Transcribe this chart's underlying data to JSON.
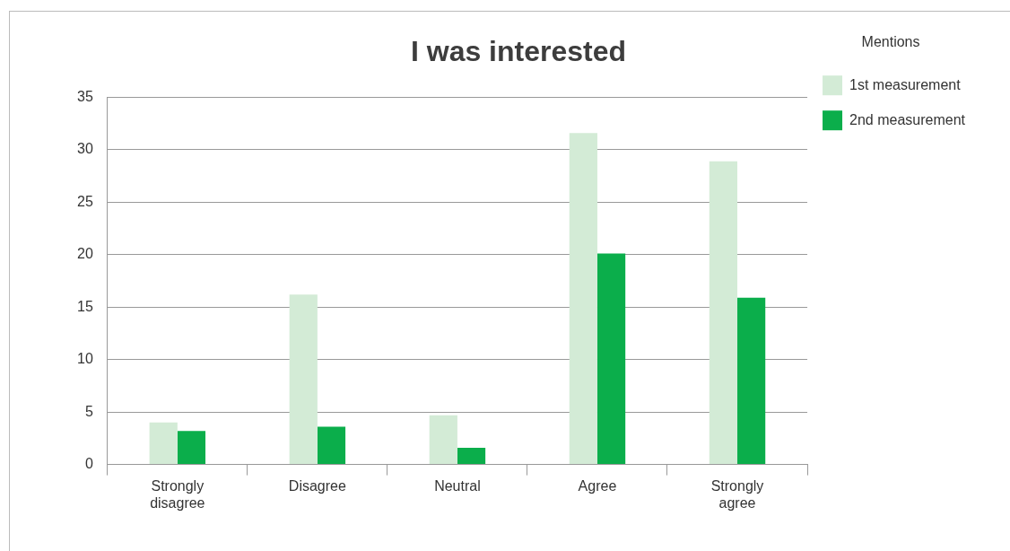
{
  "chart_data": {
    "type": "bar",
    "title": "I was interested",
    "legend_title": "Mentions",
    "categories": [
      "Strongly disagree",
      "Disagree",
      "Neutral",
      "Agree",
      "Strongly agree"
    ],
    "series": [
      {
        "name": "1st measurement",
        "color": "#d3ebd6",
        "values": [
          4,
          16.2,
          4.7,
          31.6,
          28.9
        ]
      },
      {
        "name": "2nd measurement",
        "color": "#0bae4b",
        "values": [
          3.2,
          3.6,
          1.6,
          20.1,
          15.9
        ]
      }
    ],
    "ylim": [
      0,
      35
    ],
    "yticks": [
      0,
      5,
      10,
      15,
      20,
      25,
      30,
      35
    ],
    "grid": "y",
    "legend": "top right"
  }
}
